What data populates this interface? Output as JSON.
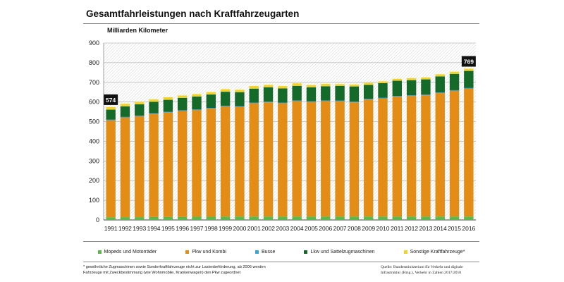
{
  "title": "Gesamtfahrleistungen nach Kraftfahrzeugarten",
  "unit_label": "Milliarden Kilometer",
  "footnote": "* gewöhnliche Zugmaschinen sowie Sonderkraftfahrzeuge nicht zur Lastenbeförderung, ab 2006 werden Fahrzeuge mit Zweckbestimmung (wie Wohnmobile, Krankenwagen) den Pkw zugeordnet",
  "source": "Quelle: Bundesministerium für Verkehr und digitale Infrastruktur (Hrsg.), Verkehr in Zahlen 2017/2018",
  "chart_data": {
    "type": "bar",
    "stacked": true,
    "title": "Gesamtfahrleistungen nach Kraftfahrzeugarten",
    "ylabel": "Milliarden Kilometer",
    "xlabel": "",
    "ylim": [
      0,
      900
    ],
    "yticks": [
      0,
      100,
      200,
      300,
      400,
      500,
      600,
      700,
      800,
      900
    ],
    "categories": [
      "1991",
      "1992",
      "1993",
      "1994",
      "1995",
      "1996",
      "1997",
      "1998",
      "1999",
      "2000",
      "2001",
      "2002",
      "2003",
      "2004",
      "2005",
      "2006",
      "2007",
      "2008",
      "2009",
      "2010",
      "2011",
      "2012",
      "2013",
      "2014",
      "2015",
      "2016"
    ],
    "series": [
      {
        "name": "Mopeds und Motorräder",
        "color": "#5cb84a",
        "values": [
          13,
          14,
          14,
          15,
          15,
          15,
          16,
          16,
          17,
          17,
          17,
          17,
          17,
          17,
          17,
          17,
          17,
          17,
          17,
          17,
          17,
          17,
          17,
          17,
          17,
          17
        ]
      },
      {
        "name": "Pkw und Kombi",
        "color": "#e38d16",
        "values": [
          493,
          506,
          513,
          524,
          531,
          539,
          542,
          550,
          560,
          558,
          576,
          581,
          576,
          587,
          583,
          587,
          586,
          581,
          595,
          600,
          610,
          613,
          617,
          628,
          639,
          650
        ]
      },
      {
        "name": "Busse",
        "color": "#3ba4d6",
        "values": [
          4,
          4,
          4,
          4,
          4,
          4,
          4,
          4,
          4,
          4,
          4,
          4,
          4,
          4,
          4,
          4,
          4,
          4,
          4,
          4,
          4,
          4,
          4,
          4,
          4,
          4
        ]
      },
      {
        "name": "Lkw und Sattelzugmaschinen",
        "color": "#156a2a",
        "values": [
          51,
          54,
          57,
          58,
          61,
          63,
          66,
          68,
          71,
          71,
          71,
          73,
          72,
          74,
          71,
          72,
          75,
          77,
          71,
          75,
          77,
          77,
          77,
          81,
          83,
          87
        ]
      },
      {
        "name": "Sonstige Kraftfahrzeuge*",
        "color": "#f4d22a",
        "values": [
          13,
          13,
          12,
          12,
          13,
          12,
          12,
          12,
          13,
          12,
          13,
          12,
          12,
          13,
          11,
          12,
          9,
          10,
          10,
          9,
          10,
          10,
          10,
          11,
          11,
          11
        ]
      }
    ],
    "callouts": [
      {
        "category": "1991",
        "label": "574"
      },
      {
        "category": "2016",
        "label": "769"
      }
    ],
    "grid": true,
    "legend_position": "bottom"
  }
}
